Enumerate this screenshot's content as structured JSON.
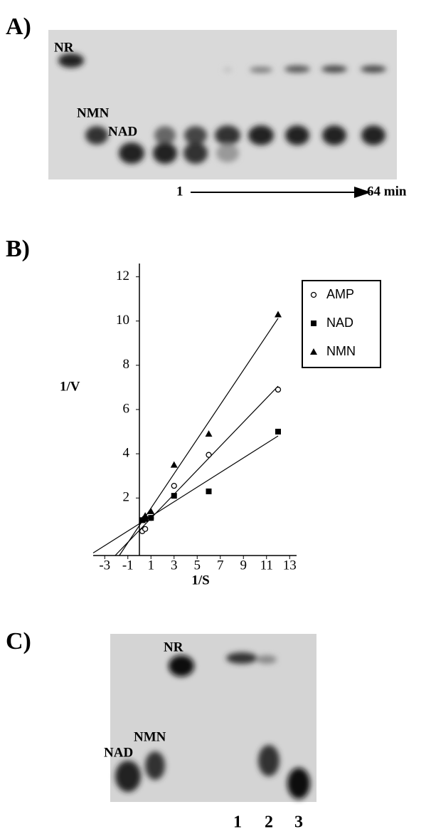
{
  "panel_a": {
    "label": "A)",
    "bands": [
      "NR",
      "NMN",
      "NAD"
    ],
    "start": "1",
    "end": "64 min"
  },
  "chart_data": {
    "type": "scatter",
    "label": "B)",
    "xlabel": "1/S",
    "ylabel": "1/V",
    "xlim": [
      -4,
      13.6
    ],
    "ylim": [
      -0.6,
      12.6
    ],
    "xticks": [
      -3,
      -1,
      1,
      3,
      5,
      7,
      9,
      11,
      13
    ],
    "yticks": [
      2,
      4,
      6,
      8,
      10,
      12
    ],
    "fit_lines": true,
    "legend": "upper right",
    "series": [
      {
        "name": "AMP",
        "marker": "circle",
        "color": "#000000",
        "x": [
          0.25,
          0.5,
          1,
          3,
          6,
          12
        ],
        "values": [
          0.5,
          0.6,
          1.1,
          2.55,
          3.95,
          6.9
        ]
      },
      {
        "name": "NAD",
        "marker": "square",
        "color": "#000000",
        "x": [
          0.25,
          0.5,
          1,
          3,
          6,
          12
        ],
        "values": [
          1.0,
          1.05,
          1.1,
          2.1,
          2.3,
          5.0
        ]
      },
      {
        "name": "NMN",
        "marker": "triangle",
        "color": "#000000",
        "x": [
          0.25,
          0.5,
          1,
          3,
          6,
          12
        ],
        "values": [
          1.0,
          1.2,
          1.4,
          3.5,
          4.9,
          10.3
        ]
      }
    ]
  },
  "panel_c": {
    "label": "C)",
    "bands": [
      "NR",
      "NMN",
      "NAD"
    ],
    "lanes": [
      "1",
      "2",
      "3"
    ]
  }
}
